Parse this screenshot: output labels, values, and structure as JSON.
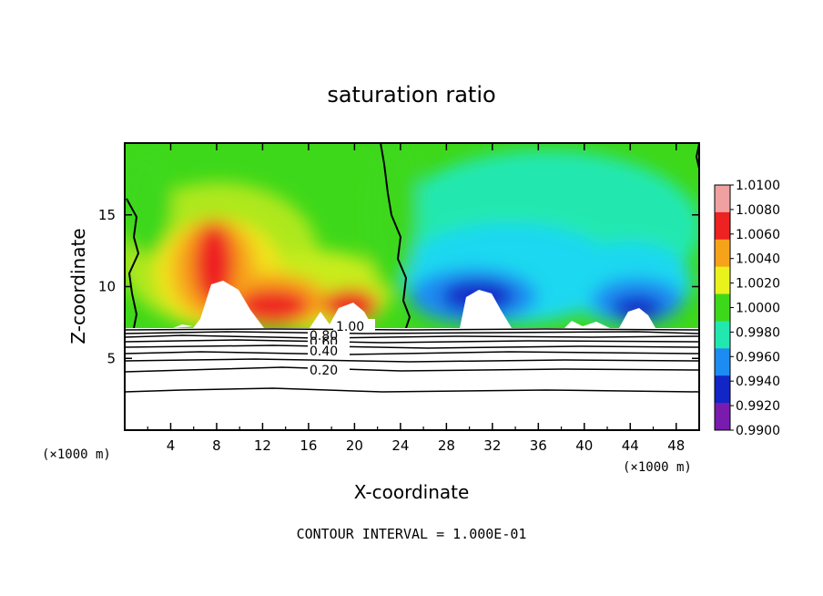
{
  "chart_data": {
    "type": "heatmap",
    "title": "saturation ratio",
    "xlabel": "X-coordinate",
    "ylabel": "Z-coordinate",
    "x_unit_left": "(×1000 m)",
    "x_unit_right": "(×1000 m)",
    "xlim": [
      0,
      50
    ],
    "ylim": [
      0,
      20
    ],
    "x_ticks": [
      4,
      8,
      12,
      16,
      20,
      24,
      28,
      32,
      36,
      40,
      44,
      48
    ],
    "x_tick_labels": [
      "4",
      "8",
      "12",
      "16",
      "20",
      "24",
      "28",
      "32",
      "36",
      "40",
      "44",
      "48"
    ],
    "y_ticks": [
      5,
      10,
      15
    ],
    "y_tick_labels": [
      "5",
      "10",
      "15"
    ],
    "colorbar": {
      "labels": [
        "1.0100",
        "1.0080",
        "1.0060",
        "1.0040",
        "1.0020",
        "1.0000",
        "0.9980",
        "0.9960",
        "0.9940",
        "0.9920",
        "0.9900"
      ],
      "values": [
        1.01,
        1.008,
        1.006,
        1.004,
        1.002,
        1.0,
        0.998,
        0.996,
        0.994,
        0.992,
        0.99
      ],
      "colors": [
        "#f0a0a0",
        "#ee2222",
        "#f7a31a",
        "#e9f21c",
        "#3ed81a",
        "#22e8b0",
        "#1c8cf2",
        "#1226c8",
        "#7a1bb0"
      ]
    },
    "contour_labels": [
      "1.00",
      "0.80",
      "0.60",
      "0.40",
      "0.20"
    ],
    "contour_levels": [
      1.0,
      0.8,
      0.6,
      0.4,
      0.2
    ],
    "contour_interval_text": "CONTOUR INTERVAL = 1.000E-01",
    "cloud_base_z": 7.2
  }
}
